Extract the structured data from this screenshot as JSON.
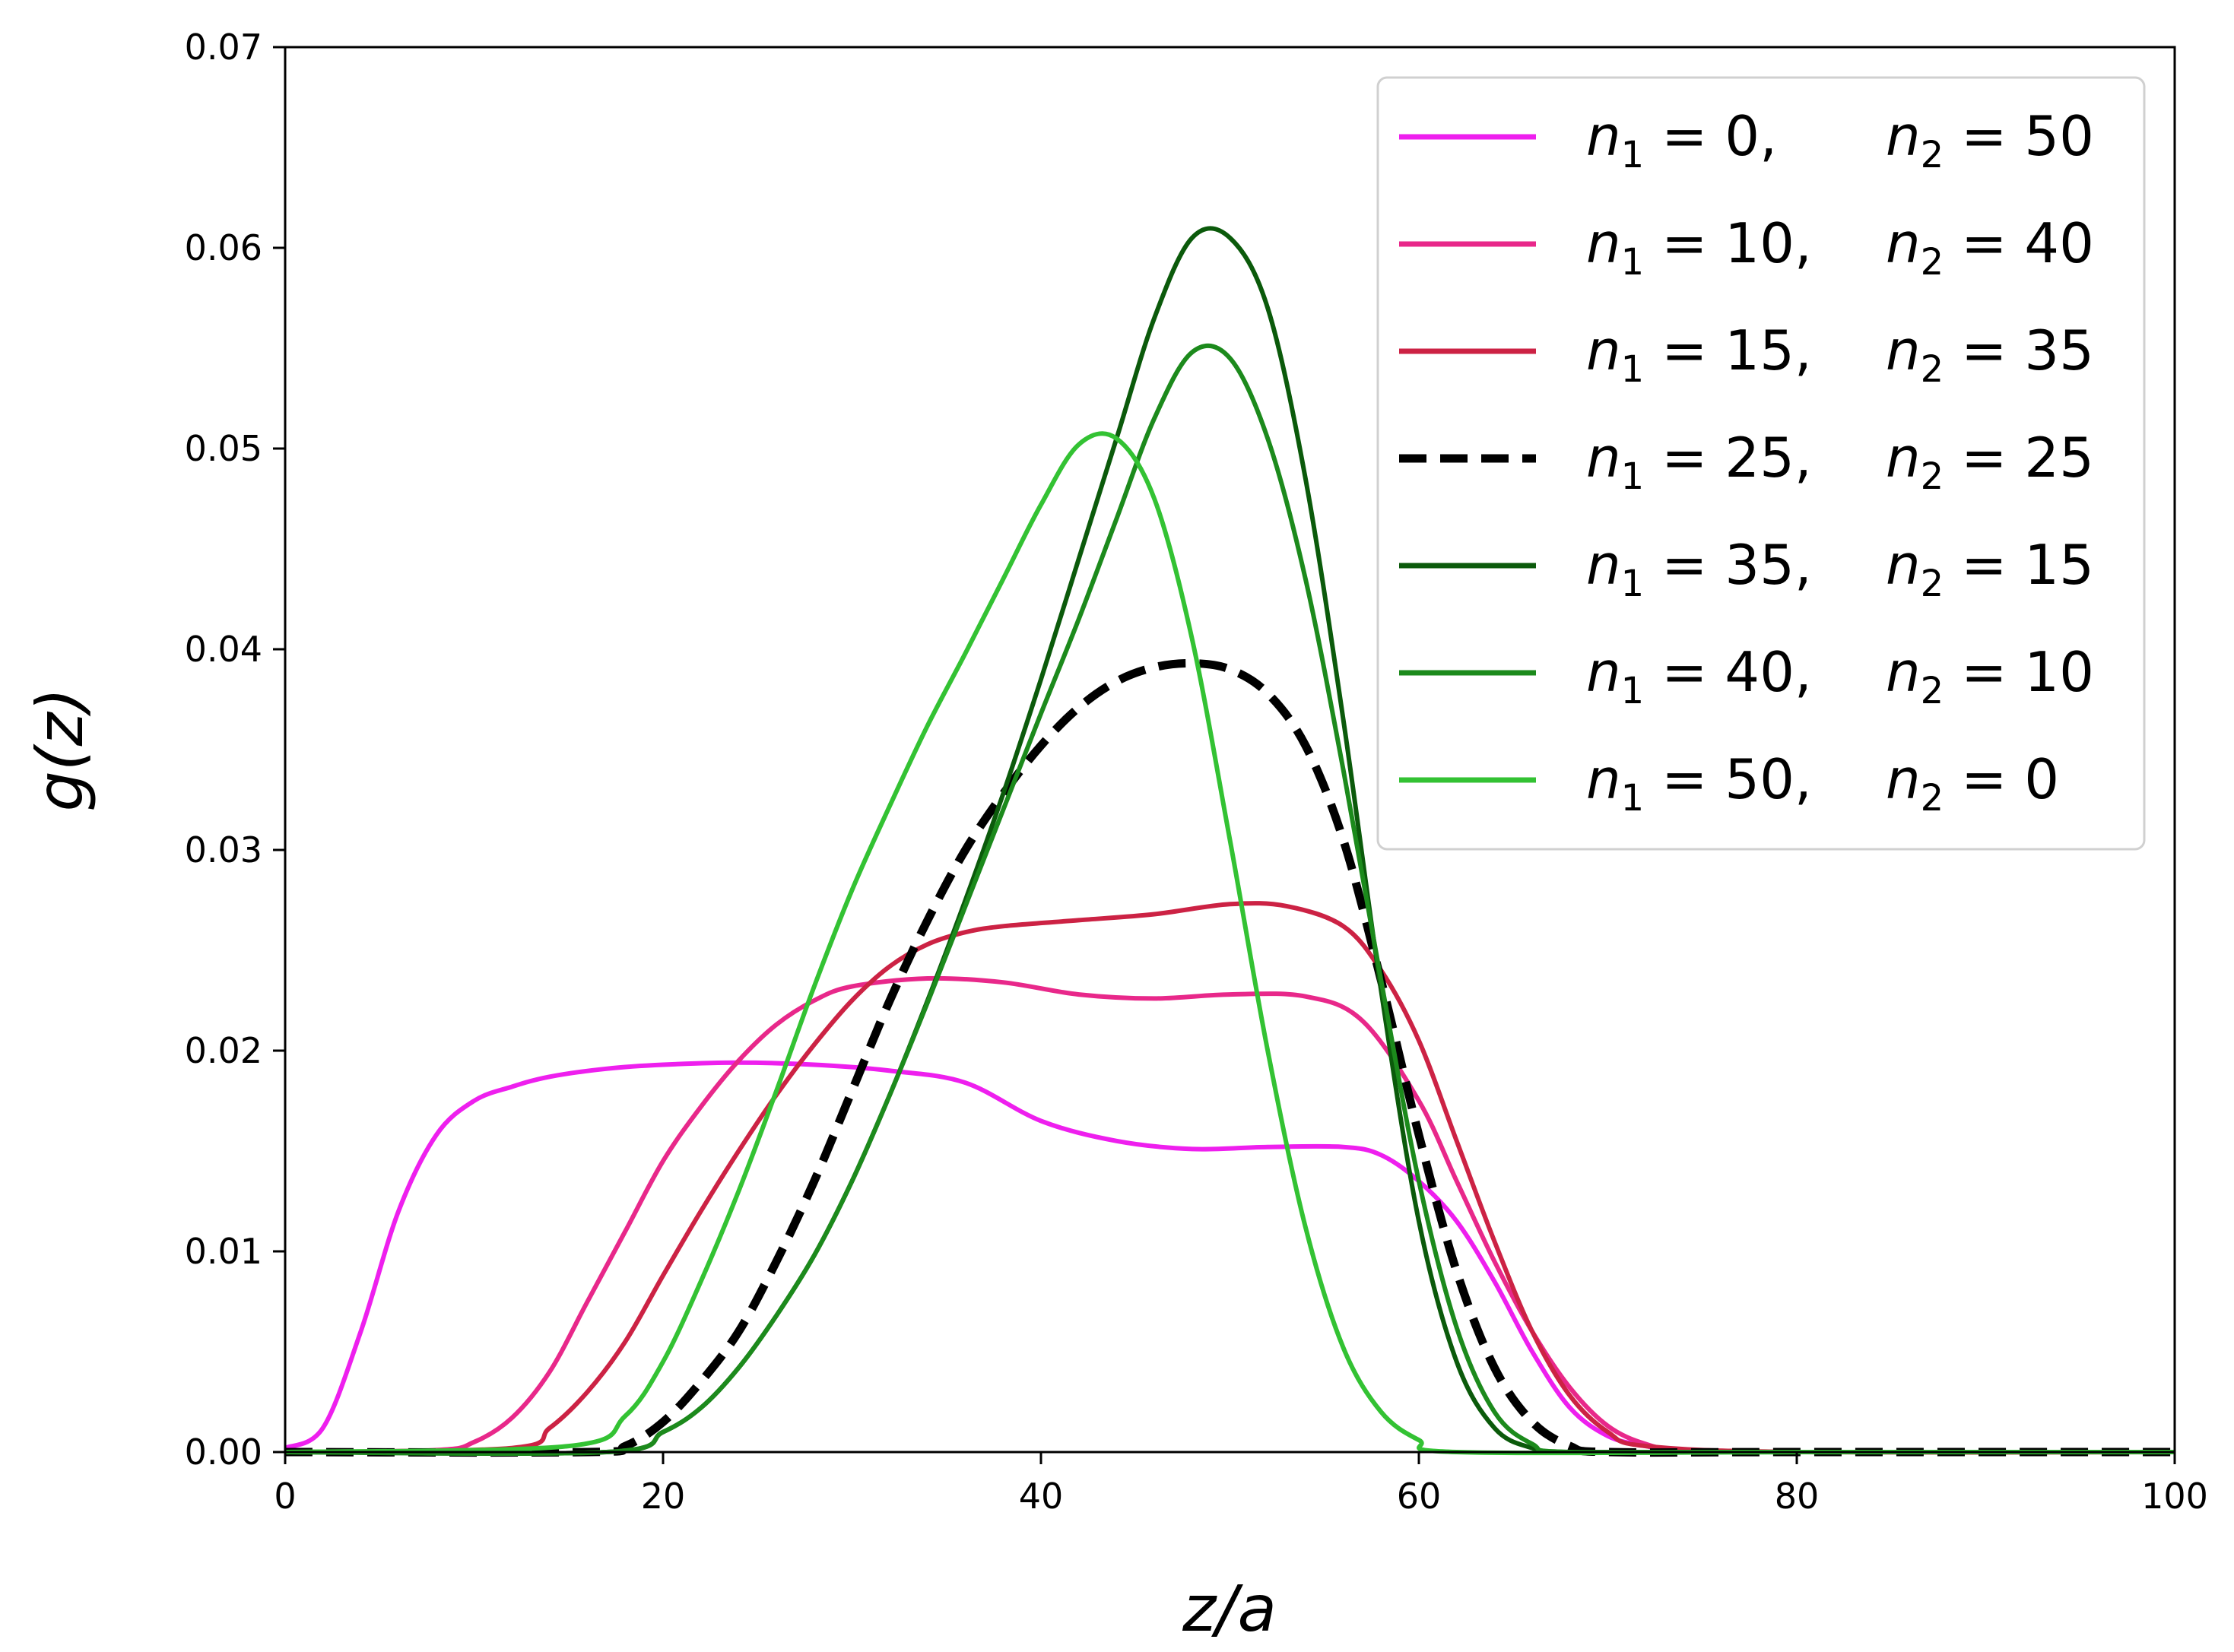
{
  "chart_data": {
    "type": "line",
    "xlabel": "z/a",
    "ylabel": "g(z)",
    "xlim": [
      0,
      100
    ],
    "ylim": [
      0,
      0.07
    ],
    "xticks": [
      "0",
      "20",
      "40",
      "60",
      "80",
      "100"
    ],
    "yticks": [
      "0.00",
      "0.01",
      "0.02",
      "0.03",
      "0.04",
      "0.05",
      "0.06",
      "0.07"
    ],
    "grid": false,
    "legend_position": "top-right",
    "series": [
      {
        "n1": "0",
        "n2": "50",
        "color": "#ee1fee",
        "dash": "solid",
        "x": [
          0,
          2,
          4,
          6,
          8,
          10,
          12,
          14,
          17,
          20,
          24,
          28,
          32,
          36,
          40,
          44,
          48,
          52,
          56,
          58,
          60,
          62,
          64,
          66,
          68,
          70,
          72,
          74,
          80,
          90,
          100
        ],
        "y": [
          0.0002,
          0.0012,
          0.006,
          0.012,
          0.0158,
          0.0175,
          0.0182,
          0.0187,
          0.0191,
          0.0193,
          0.0194,
          0.0193,
          0.019,
          0.0184,
          0.0165,
          0.0155,
          0.0151,
          0.0152,
          0.0152,
          0.0148,
          0.0135,
          0.0115,
          0.0085,
          0.005,
          0.0022,
          0.0008,
          0.0003,
          0.0001,
          0.0,
          0.0,
          0.0
        ]
      },
      {
        "n1": "10",
        "n2": "40",
        "color": "#e8288a",
        "dash": "solid",
        "x": [
          0,
          8,
          10,
          12,
          14,
          16,
          18,
          20,
          22,
          24,
          26,
          28,
          30,
          34,
          38,
          42,
          46,
          50,
          54,
          57,
          60,
          62,
          64,
          66,
          68,
          70,
          72,
          74,
          80,
          100
        ],
        "y": [
          0.0,
          0.0001,
          0.0005,
          0.0017,
          0.004,
          0.0075,
          0.011,
          0.0145,
          0.0172,
          0.0195,
          0.0213,
          0.0225,
          0.0232,
          0.0236,
          0.0234,
          0.0228,
          0.0226,
          0.0228,
          0.0227,
          0.0215,
          0.0175,
          0.0135,
          0.0095,
          0.006,
          0.0032,
          0.0013,
          0.0004,
          0.0001,
          0.0,
          0.0
        ]
      },
      {
        "n1": "15",
        "n2": "35",
        "color": "#cc2244",
        "dash": "solid",
        "x": [
          0,
          12,
          14,
          16,
          18,
          20,
          22,
          24,
          26,
          28,
          30,
          32,
          34,
          36,
          38,
          42,
          46,
          50,
          53,
          56,
          58,
          60,
          62,
          64,
          66,
          68,
          70,
          72,
          80,
          100
        ],
        "y": [
          0.0,
          0.0002,
          0.0012,
          0.003,
          0.0055,
          0.0088,
          0.012,
          0.015,
          0.0178,
          0.0203,
          0.0225,
          0.0242,
          0.0253,
          0.0259,
          0.0262,
          0.0265,
          0.0268,
          0.0273,
          0.0272,
          0.0262,
          0.024,
          0.0205,
          0.0155,
          0.0105,
          0.006,
          0.0028,
          0.001,
          0.0003,
          0.0,
          0.0
        ]
      },
      {
        "n1": "25",
        "n2": "25",
        "color": "#000000",
        "dash": "dashed",
        "x": [
          0,
          16,
          18,
          20,
          22,
          24,
          26,
          28,
          30,
          32,
          34,
          36,
          38,
          40,
          42,
          44,
          46,
          48,
          50,
          52,
          54,
          56,
          58,
          60,
          62,
          64,
          66,
          68,
          70,
          80,
          100
        ],
        "y": [
          0.0,
          0.0,
          0.0003,
          0.0015,
          0.0035,
          0.006,
          0.0095,
          0.0135,
          0.018,
          0.0225,
          0.0265,
          0.03,
          0.0328,
          0.0352,
          0.0371,
          0.0384,
          0.0391,
          0.0393,
          0.039,
          0.0378,
          0.0352,
          0.0305,
          0.0235,
          0.0158,
          0.009,
          0.0042,
          0.0015,
          0.0003,
          0.0,
          0.0,
          0.0
        ]
      },
      {
        "n1": "35",
        "n2": "15",
        "color": "#0b5a0b",
        "dash": "solid",
        "x": [
          0,
          17,
          20,
          22,
          24,
          26,
          28,
          30,
          32,
          34,
          36,
          38,
          40,
          42,
          44,
          46,
          48,
          50,
          52,
          54,
          56,
          58,
          60,
          62,
          64,
          66,
          68,
          80,
          100
        ],
        "y": [
          0.0,
          0.0,
          0.001,
          0.0022,
          0.0042,
          0.0068,
          0.0098,
          0.0135,
          0.0178,
          0.0225,
          0.0275,
          0.0328,
          0.0385,
          0.0445,
          0.0505,
          0.0565,
          0.0605,
          0.0605,
          0.057,
          0.0485,
          0.0365,
          0.023,
          0.0115,
          0.0045,
          0.0012,
          0.0002,
          0.0,
          0.0,
          0.0
        ]
      },
      {
        "n1": "40",
        "n2": "10",
        "color": "#1c8a1c",
        "dash": "solid",
        "x": [
          0,
          17,
          20,
          22,
          24,
          26,
          28,
          30,
          32,
          34,
          36,
          38,
          40,
          42,
          44,
          46,
          48,
          50,
          52,
          54,
          56,
          58,
          60,
          62,
          64,
          66,
          68,
          80,
          100
        ],
        "y": [
          0.0,
          0.0,
          0.001,
          0.0022,
          0.0042,
          0.0068,
          0.0098,
          0.0135,
          0.0178,
          0.0224,
          0.0272,
          0.032,
          0.0368,
          0.0415,
          0.0465,
          0.0515,
          0.0548,
          0.0545,
          0.0505,
          0.0435,
          0.034,
          0.0235,
          0.0135,
          0.0062,
          0.002,
          0.0004,
          0.0,
          0.0,
          0.0
        ]
      },
      {
        "n1": "50",
        "n2": "0",
        "color": "#33c233",
        "dash": "solid",
        "x": [
          0,
          15,
          18,
          20,
          22,
          24,
          26,
          28,
          30,
          32,
          34,
          36,
          38,
          40,
          42,
          44,
          46,
          48,
          50,
          52,
          54,
          56,
          58,
          60,
          62,
          80,
          100
        ],
        "y": [
          0.0,
          0.0003,
          0.0018,
          0.0045,
          0.0085,
          0.013,
          0.018,
          0.0232,
          0.028,
          0.0322,
          0.0362,
          0.0398,
          0.0435,
          0.0472,
          0.0502,
          0.0505,
          0.0475,
          0.0405,
          0.0305,
          0.02,
          0.0112,
          0.0052,
          0.002,
          0.0006,
          0.0,
          0.0,
          0.0
        ]
      }
    ]
  }
}
